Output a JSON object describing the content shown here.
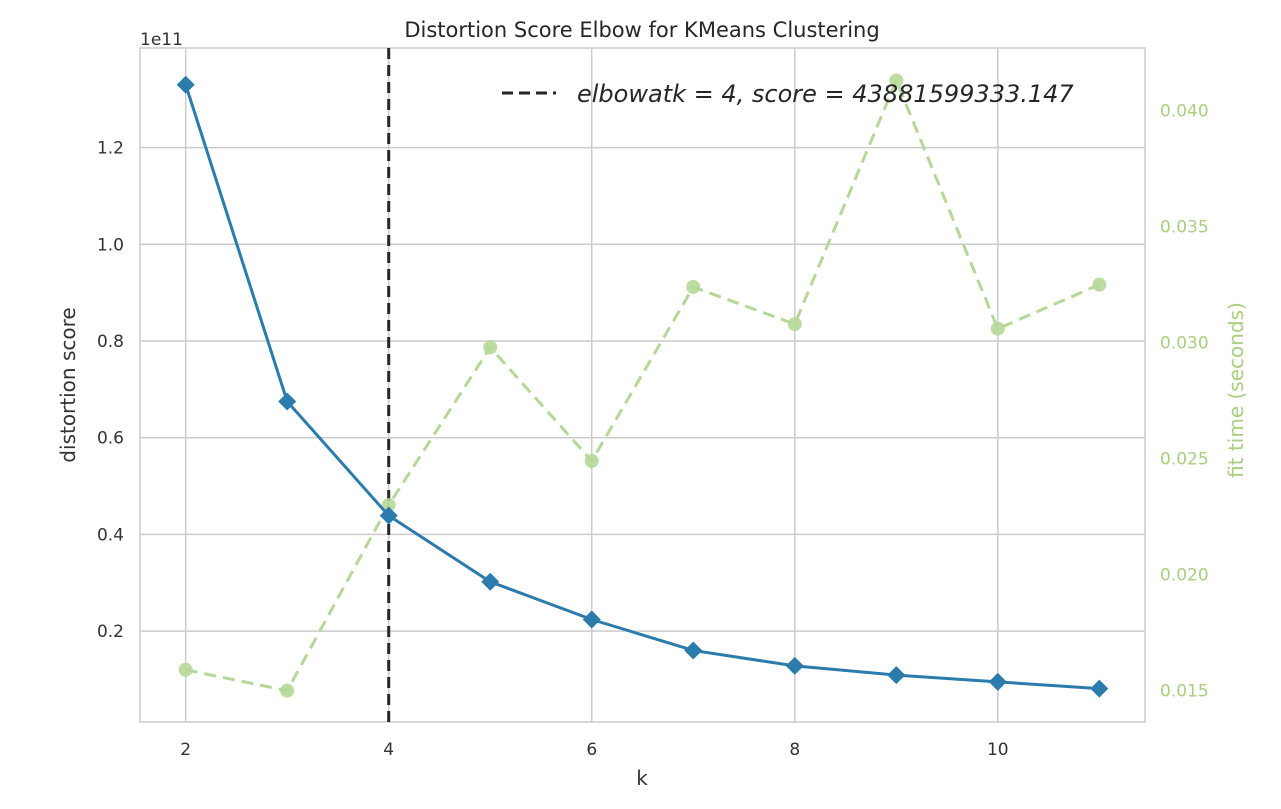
{
  "chart_data": {
    "type": "line",
    "title": "Distortion Score Elbow for KMeans Clustering",
    "xlabel": "k",
    "ylabel": "distortion score",
    "y2label": "fit time (seconds)",
    "y_offset_label": "1e11",
    "x": [
      2,
      3,
      4,
      5,
      6,
      7,
      8,
      9,
      10,
      11
    ],
    "xlim": [
      1.55,
      11.45
    ],
    "ylim": [
      1200000000,
      140600000000
    ],
    "y2lim": [
      0.01365,
      0.0427
    ],
    "x_ticks": [
      2,
      4,
      6,
      8,
      10
    ],
    "x_tick_labels": [
      "2",
      "4",
      "6",
      "8",
      "10"
    ],
    "y_ticks": [
      20000000000,
      40000000000,
      60000000000,
      80000000000,
      100000000000,
      120000000000
    ],
    "y_tick_labels": [
      "0.2",
      "0.4",
      "0.6",
      "0.8",
      "1.0",
      "1.2"
    ],
    "y2_ticks": [
      0.015,
      0.02,
      0.025,
      0.03,
      0.035,
      0.04
    ],
    "y2_tick_labels": [
      "0.015",
      "0.020",
      "0.025",
      "0.030",
      "0.035",
      "0.040"
    ],
    "grid": true,
    "legend_position": "top-right",
    "series": [
      {
        "axis": "left",
        "marker": "diamond",
        "line": "solid",
        "color": "#2b7bac",
        "values": [
          133000000000,
          67500000000,
          43881599333.147,
          30200000000,
          22400000000,
          16000000000,
          12800000000,
          10900000000,
          9500000000,
          8100000000
        ]
      },
      {
        "axis": "right",
        "marker": "circle",
        "line": "dashed",
        "color": "#b5d898",
        "values": [
          0.0159,
          0.015,
          0.023,
          0.0298,
          0.0249,
          0.0324,
          0.0308,
          0.0413,
          0.0306,
          0.0325
        ]
      }
    ],
    "vline": {
      "x": 4,
      "color": "#262626",
      "label": "elbowatk = 4, score = 43881599333.147"
    }
  }
}
